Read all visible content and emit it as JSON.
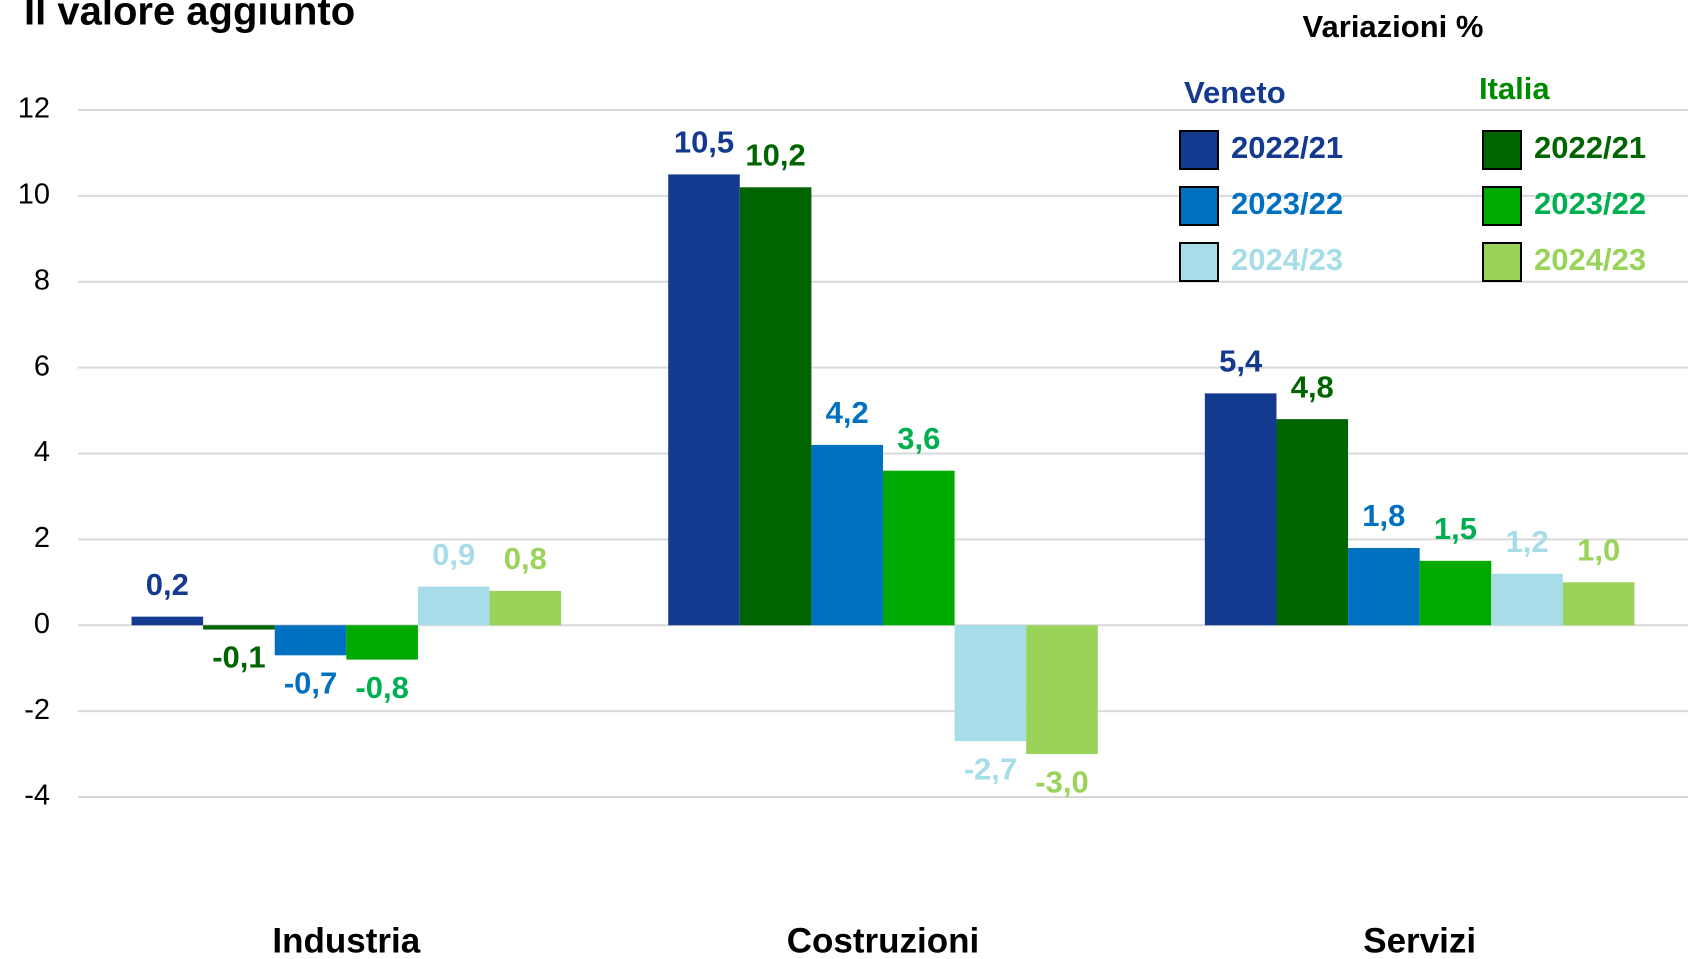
{
  "chart_data": {
    "type": "bar",
    "title": "Il valore aggiunto",
    "legend_title": "Variazioni %",
    "categories": [
      "Industria",
      "Costruzioni",
      "Servizi"
    ],
    "ylim": [
      -4,
      12
    ],
    "yticks": [
      -4,
      -2,
      0,
      2,
      4,
      6,
      8,
      10,
      12
    ],
    "grid": true,
    "series_groups": [
      {
        "name": "Veneto",
        "color": "#143a8f",
        "series": [
          {
            "name": "2022/21",
            "color": "#143a8f",
            "values": [
              0.2,
              10.5,
              5.4
            ],
            "value_labels": [
              "0,2",
              "10,5",
              "5,4"
            ]
          },
          {
            "name": "2023/22",
            "color": "#0070c0",
            "values": [
              -0.7,
              4.2,
              1.8
            ],
            "value_labels": [
              "-0,7",
              "4,2",
              "1,8"
            ]
          },
          {
            "name": "2024/23",
            "color": "#a6dde9",
            "values": [
              0.9,
              -2.7,
              1.2
            ],
            "value_labels": [
              "0,9",
              "-2,7",
              "1,2"
            ]
          }
        ]
      },
      {
        "name": "Italia",
        "color": "#008a00",
        "series": [
          {
            "name": "2022/21",
            "color": "#006400",
            "values": [
              -0.1,
              10.2,
              4.8
            ],
            "value_labels": [
              "-0,1",
              "10,2",
              "4,8"
            ]
          },
          {
            "name": "2023/22",
            "color": "#00aa00",
            "values": [
              -0.8,
              3.6,
              1.5
            ],
            "value_labels": [
              "-0,8",
              "3,6",
              "1,5"
            ]
          },
          {
            "name": "2024/23",
            "color": "#99d35a",
            "values": [
              0.8,
              -3.0,
              1.0
            ],
            "value_labels": [
              "0,8",
              "-3,0",
              "1,0"
            ]
          }
        ]
      }
    ]
  }
}
